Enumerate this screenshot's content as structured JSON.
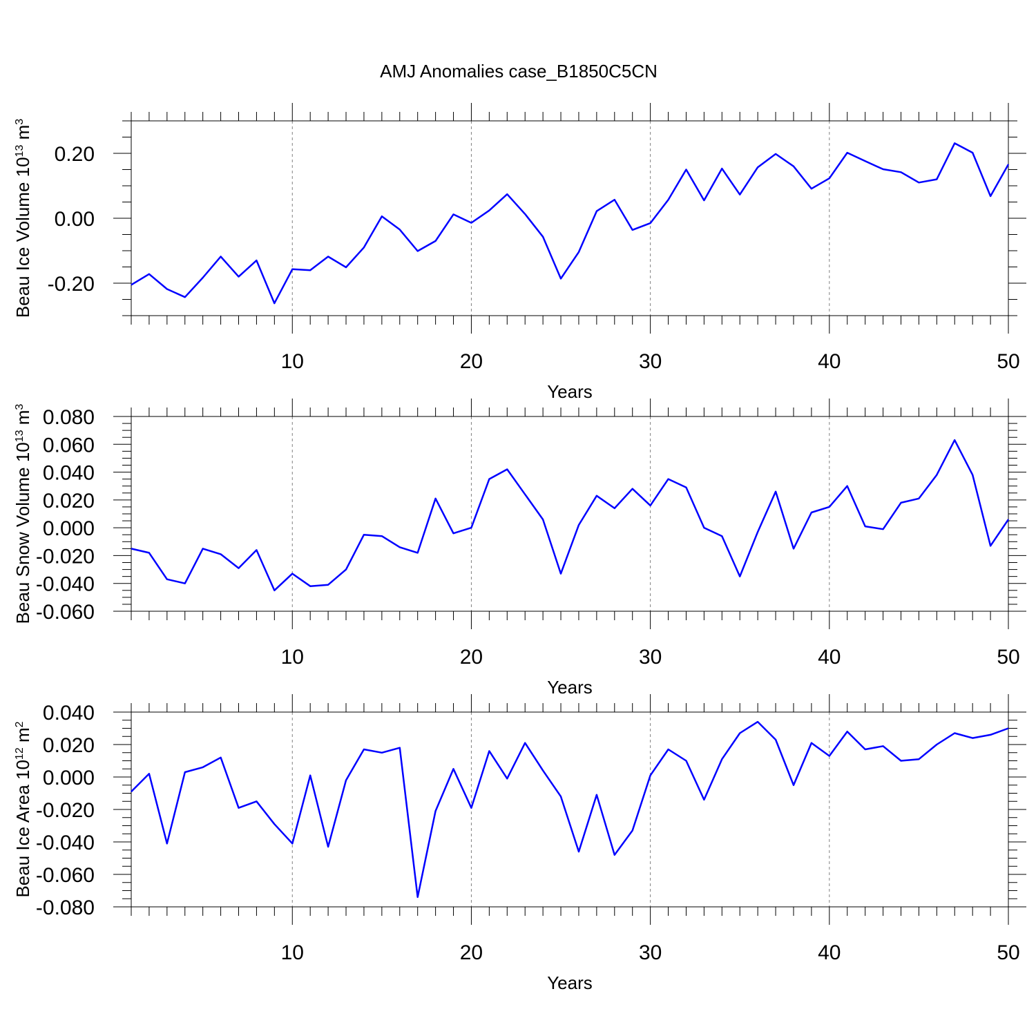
{
  "title": "AMJ Anomalies case_B1850C5CN",
  "colors": {
    "line": "#0000ff",
    "axes": "#000000",
    "grid": "#808080"
  },
  "chart_data": [
    {
      "type": "line",
      "ylabel": {
        "main": "Beau Ice Volume 10",
        "exp": "13",
        "unit": " m",
        "unit_exp": "3"
      },
      "xlabel": "Years",
      "xlim": [
        1,
        50
      ],
      "ylim": [
        -0.3,
        0.3
      ],
      "xticks": [
        10,
        20,
        30,
        40,
        50
      ],
      "yticks": [
        -0.2,
        0.0,
        0.2
      ],
      "ytick_labels": [
        "-0.20",
        "0.00",
        "0.20"
      ],
      "yminor_step": 0.05,
      "grid_x": true,
      "x": [
        1,
        2,
        3,
        4,
        5,
        6,
        7,
        8,
        9,
        10,
        11,
        12,
        13,
        14,
        15,
        16,
        17,
        18,
        19,
        20,
        21,
        22,
        23,
        24,
        25,
        26,
        27,
        28,
        29,
        30,
        31,
        32,
        33,
        34,
        35,
        36,
        37,
        38,
        39,
        40,
        41,
        42,
        43,
        44,
        45,
        46,
        47,
        48,
        49,
        50
      ],
      "series": [
        {
          "values": [
            -0.205,
            -0.172,
            -0.218,
            -0.243,
            -0.183,
            -0.118,
            -0.18,
            -0.13,
            -0.262,
            -0.157,
            -0.16,
            -0.118,
            -0.151,
            -0.09,
            0.006,
            -0.035,
            -0.101,
            -0.07,
            0.012,
            -0.014,
            0.024,
            0.074,
            0.013,
            -0.057,
            -0.186,
            -0.104,
            0.022,
            0.057,
            -0.036,
            -0.015,
            0.057,
            0.15,
            0.055,
            0.153,
            0.073,
            0.157,
            0.198,
            0.16,
            0.091,
            0.123,
            0.202,
            0.176,
            0.151,
            0.142,
            0.11,
            0.12,
            0.231,
            0.202,
            0.068,
            0.166
          ]
        }
      ]
    },
    {
      "type": "line",
      "ylabel": {
        "main": "Beau Snow Volume 10",
        "exp": "13",
        "unit": " m",
        "unit_exp": "3"
      },
      "xlabel": "Years",
      "xlim": [
        1,
        50
      ],
      "ylim": [
        -0.06,
        0.08
      ],
      "xticks": [
        10,
        20,
        30,
        40,
        50
      ],
      "yticks": [
        -0.06,
        -0.04,
        -0.02,
        0.0,
        0.02,
        0.04,
        0.06,
        0.08
      ],
      "ytick_labels": [
        "-0.060",
        "-0.040",
        "-0.020",
        "0.000",
        "0.020",
        "0.040",
        "0.060",
        "0.080"
      ],
      "yminor_step": 0.005,
      "grid_x": true,
      "x": [
        1,
        2,
        3,
        4,
        5,
        6,
        7,
        8,
        9,
        10,
        11,
        12,
        13,
        14,
        15,
        16,
        17,
        18,
        19,
        20,
        21,
        22,
        23,
        24,
        25,
        26,
        27,
        28,
        29,
        30,
        31,
        32,
        33,
        34,
        35,
        36,
        37,
        38,
        39,
        40,
        41,
        42,
        43,
        44,
        45,
        46,
        47,
        48,
        49,
        50
      ],
      "series": [
        {
          "values": [
            -0.015,
            -0.018,
            -0.037,
            -0.04,
            -0.015,
            -0.019,
            -0.029,
            -0.016,
            -0.045,
            -0.033,
            -0.042,
            -0.041,
            -0.03,
            -0.005,
            -0.006,
            -0.014,
            -0.018,
            0.021,
            -0.004,
            0.0,
            0.035,
            0.042,
            0.024,
            0.006,
            -0.033,
            0.002,
            0.023,
            0.014,
            0.028,
            0.016,
            0.035,
            0.029,
            0.0,
            -0.006,
            -0.035,
            -0.003,
            0.026,
            -0.015,
            0.011,
            0.015,
            0.03,
            0.001,
            -0.001,
            0.018,
            0.021,
            0.038,
            0.063,
            0.038,
            -0.013,
            0.006
          ]
        }
      ]
    },
    {
      "type": "line",
      "ylabel": {
        "main": "Beau Ice Area 10",
        "exp": "12",
        "unit": " m",
        "unit_exp": "2"
      },
      "xlabel": "Years",
      "xlim": [
        1,
        50
      ],
      "ylim": [
        -0.08,
        0.04
      ],
      "xticks": [
        10,
        20,
        30,
        40,
        50
      ],
      "yticks": [
        -0.08,
        -0.06,
        -0.04,
        -0.02,
        0.0,
        0.02,
        0.04
      ],
      "ytick_labels": [
        "-0.080",
        "-0.060",
        "-0.040",
        "-0.020",
        "0.000",
        "0.020",
        "0.040"
      ],
      "yminor_step": 0.005,
      "grid_x": true,
      "x": [
        1,
        2,
        3,
        4,
        5,
        6,
        7,
        8,
        9,
        10,
        11,
        12,
        13,
        14,
        15,
        16,
        17,
        18,
        19,
        20,
        21,
        22,
        23,
        24,
        25,
        26,
        27,
        28,
        29,
        30,
        31,
        32,
        33,
        34,
        35,
        36,
        37,
        38,
        39,
        40,
        41,
        42,
        43,
        44,
        45,
        46,
        47,
        48,
        49,
        50
      ],
      "series": [
        {
          "values": [
            -0.009,
            0.002,
            -0.041,
            0.003,
            0.006,
            0.012,
            -0.019,
            -0.015,
            -0.029,
            -0.041,
            0.001,
            -0.043,
            -0.002,
            0.017,
            0.015,
            0.018,
            -0.074,
            -0.021,
            0.005,
            -0.019,
            0.016,
            -0.001,
            0.021,
            0.004,
            -0.012,
            -0.046,
            -0.011,
            -0.048,
            -0.033,
            0.001,
            0.017,
            0.01,
            -0.014,
            0.011,
            0.027,
            0.034,
            0.023,
            -0.005,
            0.021,
            0.013,
            0.028,
            0.017,
            0.019,
            0.01,
            0.011,
            0.02,
            0.027,
            0.024,
            0.026,
            0.03
          ]
        }
      ]
    }
  ]
}
